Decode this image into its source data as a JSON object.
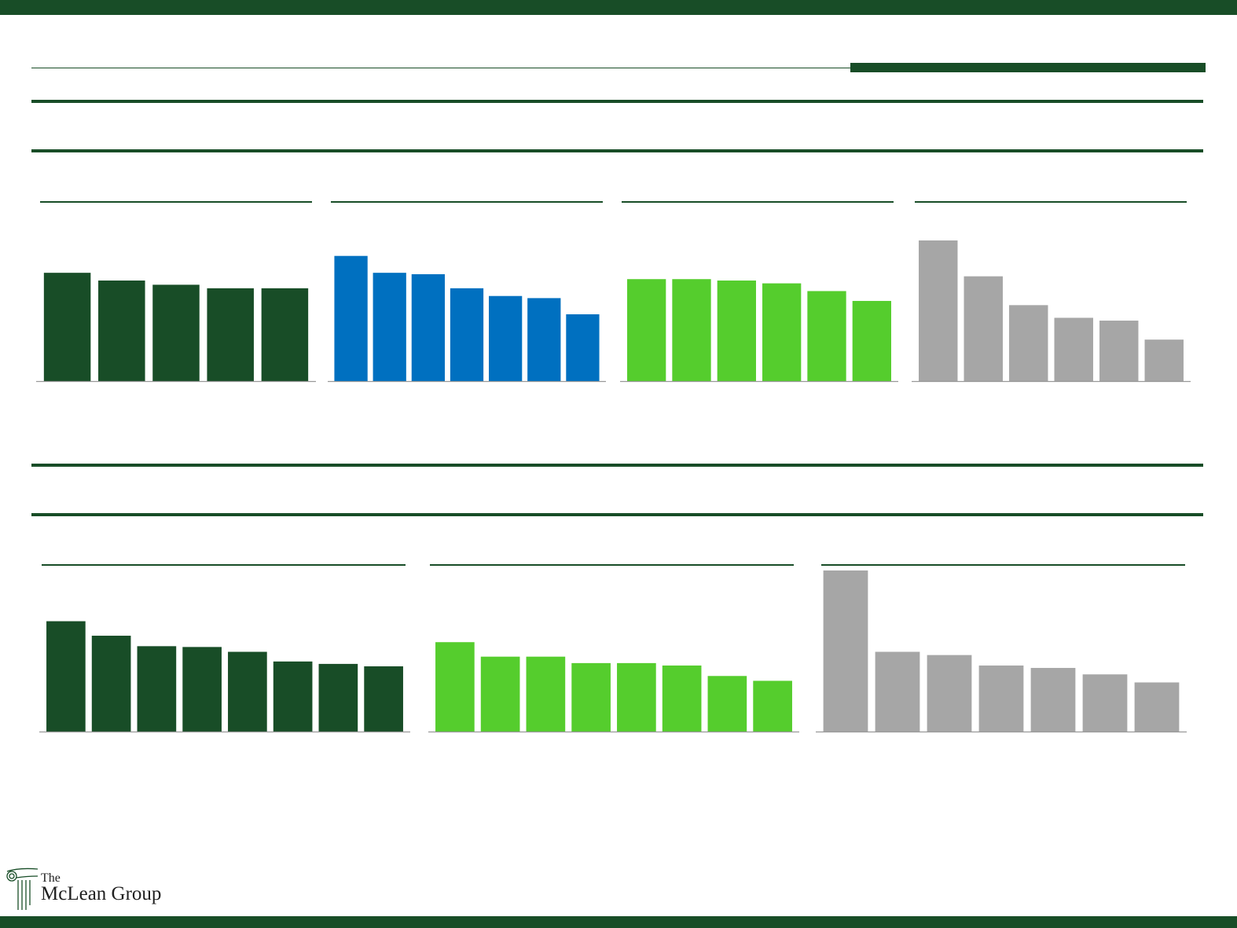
{
  "colors": {
    "brand": "#184d27",
    "blue": "#0070c0",
    "bright_green": "#55cd2d",
    "gray": "#a6a6a6",
    "axis": "#999999"
  },
  "logo": {
    "line1": "The",
    "line2": "McLean Group",
    "icon": "ionic-column-icon"
  },
  "chart_data": [
    {
      "type": "bar",
      "section": 1,
      "color": "dark_green",
      "categories": [
        "",
        "",
        "",
        "",
        ""
      ],
      "values": [
        77,
        71.5,
        68.5,
        66,
        66
      ],
      "ylim": [
        0,
        100
      ]
    },
    {
      "type": "bar",
      "section": 1,
      "color": "blue",
      "categories": [
        "",
        "",
        "",
        "",
        "",
        "",
        ""
      ],
      "values": [
        89,
        77,
        76,
        66,
        60.5,
        59,
        47.5
      ],
      "ylim": [
        0,
        100
      ]
    },
    {
      "type": "bar",
      "section": 1,
      "color": "bright_green",
      "categories": [
        "",
        "",
        "",
        "",
        "",
        ""
      ],
      "values": [
        72.5,
        72.5,
        71.5,
        69.5,
        64,
        57
      ],
      "ylim": [
        0,
        100
      ]
    },
    {
      "type": "bar",
      "section": 1,
      "color": "gray",
      "categories": [
        "",
        "",
        "",
        "",
        "",
        ""
      ],
      "values": [
        100,
        74.5,
        54,
        45,
        43,
        29.5
      ],
      "ylim": [
        0,
        100
      ]
    },
    {
      "type": "bar",
      "section": 2,
      "color": "dark_green",
      "categories": [
        "",
        "",
        "",
        "",
        "",
        "",
        "",
        ""
      ],
      "values": [
        68.5,
        59.5,
        53,
        52.5,
        49.5,
        43.5,
        42,
        40.5
      ],
      "ylim": [
        0,
        100
      ]
    },
    {
      "type": "bar",
      "section": 2,
      "color": "bright_green",
      "categories": [
        "",
        "",
        "",
        "",
        "",
        "",
        "",
        ""
      ],
      "values": [
        55.5,
        46.5,
        46.5,
        42.5,
        42.5,
        41,
        34.5,
        31.5
      ],
      "ylim": [
        0,
        100
      ]
    },
    {
      "type": "bar",
      "section": 2,
      "color": "gray",
      "categories": [
        "",
        "",
        "",
        "",
        "",
        "",
        ""
      ],
      "values": [
        100,
        49.5,
        47.5,
        41,
        39.5,
        35.5,
        30.5
      ],
      "ylim": [
        0,
        100
      ]
    }
  ]
}
